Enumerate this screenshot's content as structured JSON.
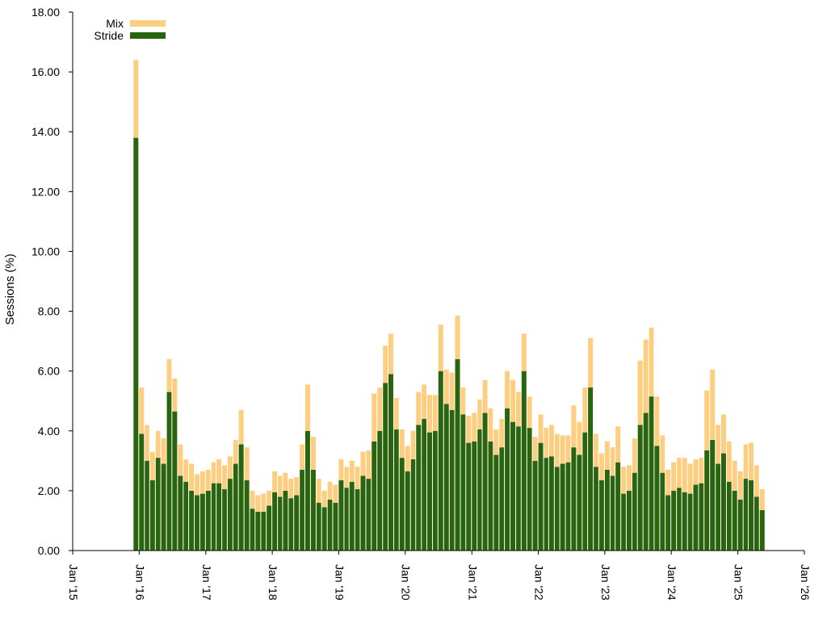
{
  "chart_data": {
    "type": "bar",
    "stacked": true,
    "ylabel": "Sessions (%)",
    "ylim": [
      0,
      18
    ],
    "yticks": [
      "0.00",
      "2.00",
      "4.00",
      "6.00",
      "8.00",
      "10.00",
      "12.00",
      "14.00",
      "16.00",
      "18.00"
    ],
    "xlim": [
      "2015-01-01",
      "2026-01-01"
    ],
    "xticks": [
      {
        "date": "2015-01-01",
        "label": "Jan '15"
      },
      {
        "date": "2016-01-01",
        "label": "Jan '16"
      },
      {
        "date": "2017-01-01",
        "label": "Jan '17"
      },
      {
        "date": "2018-01-01",
        "label": "Jan '18"
      },
      {
        "date": "2019-01-01",
        "label": "Jan '19"
      },
      {
        "date": "2020-01-01",
        "label": "Jan '20"
      },
      {
        "date": "2021-01-01",
        "label": "Jan '21"
      },
      {
        "date": "2022-01-01",
        "label": "Jan '22"
      },
      {
        "date": "2023-01-01",
        "label": "Jan '23"
      },
      {
        "date": "2024-01-01",
        "label": "Jan '24"
      },
      {
        "date": "2025-01-01",
        "label": "Jan '25"
      },
      {
        "date": "2026-01-01",
        "label": "Jan '26"
      }
    ],
    "legend_position": "top-left",
    "grid": false,
    "colors": {
      "Mix": "#fdcd80",
      "Stride": "#2a640f"
    },
    "x": [
      "2015-12",
      "2016-01",
      "2016-02",
      "2016-03",
      "2016-04",
      "2016-05",
      "2016-06",
      "2016-07",
      "2016-08",
      "2016-09",
      "2016-10",
      "2016-11",
      "2016-12",
      "2017-01",
      "2017-02",
      "2017-03",
      "2017-04",
      "2017-05",
      "2017-06",
      "2017-07",
      "2017-08",
      "2017-09",
      "2017-10",
      "2017-11",
      "2017-12",
      "2018-01",
      "2018-02",
      "2018-03",
      "2018-04",
      "2018-05",
      "2018-06",
      "2018-07",
      "2018-08",
      "2018-09",
      "2018-10",
      "2018-11",
      "2018-12",
      "2019-01",
      "2019-02",
      "2019-03",
      "2019-04",
      "2019-05",
      "2019-06",
      "2019-07",
      "2019-08",
      "2019-09",
      "2019-10",
      "2019-11",
      "2019-12",
      "2020-01",
      "2020-02",
      "2020-03",
      "2020-04",
      "2020-05",
      "2020-06",
      "2020-07",
      "2020-08",
      "2020-09",
      "2020-10",
      "2020-11",
      "2020-12",
      "2021-01",
      "2021-02",
      "2021-03",
      "2021-04",
      "2021-05",
      "2021-06",
      "2021-07",
      "2021-08",
      "2021-09",
      "2021-10",
      "2021-11",
      "2021-12",
      "2022-01",
      "2022-02",
      "2022-03",
      "2022-04",
      "2022-05",
      "2022-06",
      "2022-07",
      "2022-08",
      "2022-09",
      "2022-10",
      "2022-11",
      "2022-12",
      "2023-01",
      "2023-02",
      "2023-03",
      "2023-04",
      "2023-05",
      "2023-06",
      "2023-07",
      "2023-08",
      "2023-09",
      "2023-10",
      "2023-11",
      "2023-12",
      "2024-01",
      "2024-02",
      "2024-03",
      "2024-04",
      "2024-05",
      "2024-06",
      "2024-07",
      "2024-08",
      "2024-09",
      "2024-10",
      "2024-11",
      "2024-12",
      "2025-01",
      "2025-02",
      "2025-03",
      "2025-04",
      "2025-05"
    ],
    "series": [
      {
        "name": "Stride",
        "values": [
          13.8,
          3.9,
          3.0,
          2.35,
          3.1,
          2.9,
          5.3,
          4.65,
          2.5,
          2.3,
          2.0,
          1.85,
          1.9,
          2.0,
          2.25,
          2.25,
          2.05,
          2.4,
          2.9,
          3.55,
          2.35,
          1.4,
          1.3,
          1.3,
          1.5,
          1.95,
          1.8,
          2.0,
          1.75,
          1.85,
          2.7,
          4.0,
          2.7,
          1.6,
          1.45,
          1.7,
          1.6,
          2.35,
          2.1,
          2.3,
          2.05,
          2.5,
          2.4,
          3.65,
          4.0,
          5.6,
          5.9,
          4.05,
          3.1,
          2.65,
          3.05,
          4.2,
          4.4,
          3.95,
          4.0,
          6.0,
          4.9,
          4.7,
          6.4,
          4.55,
          3.6,
          3.65,
          4.05,
          4.6,
          3.65,
          3.2,
          3.45,
          4.75,
          4.3,
          4.15,
          6.0,
          4.1,
          3.0,
          3.6,
          3.1,
          3.15,
          2.8,
          2.9,
          2.95,
          3.45,
          3.2,
          3.95,
          5.45,
          2.8,
          2.35,
          2.7,
          2.5,
          2.95,
          1.9,
          2.0,
          2.6,
          4.2,
          4.6,
          5.15,
          3.5,
          2.6,
          1.85,
          2.0,
          2.1,
          1.95,
          1.9,
          2.2,
          2.25,
          3.35,
          3.7,
          2.9,
          3.25,
          2.3,
          2.0,
          1.7,
          2.4,
          2.35,
          1.8,
          1.35
        ]
      },
      {
        "name": "Mix",
        "values": [
          2.6,
          1.55,
          1.2,
          0.95,
          0.9,
          0.85,
          1.1,
          1.1,
          1.05,
          0.75,
          0.9,
          0.7,
          0.75,
          0.7,
          0.7,
          0.8,
          0.8,
          0.75,
          0.8,
          1.15,
          1.1,
          0.6,
          0.55,
          0.6,
          0.5,
          0.7,
          0.7,
          0.6,
          0.65,
          0.6,
          0.85,
          1.55,
          1.1,
          0.8,
          0.55,
          0.6,
          0.6,
          0.7,
          0.7,
          0.7,
          0.75,
          0.8,
          0.95,
          1.6,
          1.45,
          1.25,
          1.35,
          1.05,
          0.95,
          0.85,
          0.95,
          1.1,
          1.15,
          1.25,
          1.2,
          1.55,
          1.15,
          1.25,
          1.45,
          0.9,
          0.9,
          0.95,
          1.0,
          1.1,
          1.1,
          0.85,
          0.95,
          1.25,
          1.4,
          1.15,
          1.25,
          1.05,
          0.8,
          0.95,
          1.0,
          1.05,
          1.1,
          0.95,
          0.9,
          1.4,
          1.1,
          1.5,
          1.65,
          1.1,
          0.9,
          0.95,
          0.95,
          1.2,
          0.9,
          0.85,
          1.15,
          2.15,
          2.45,
          2.3,
          1.65,
          1.25,
          0.85,
          0.95,
          1.0,
          1.15,
          1.0,
          0.85,
          0.85,
          2.0,
          2.35,
          1.3,
          1.3,
          1.35,
          1.0,
          0.95,
          1.15,
          1.25,
          1.05,
          0.7
        ]
      }
    ]
  }
}
